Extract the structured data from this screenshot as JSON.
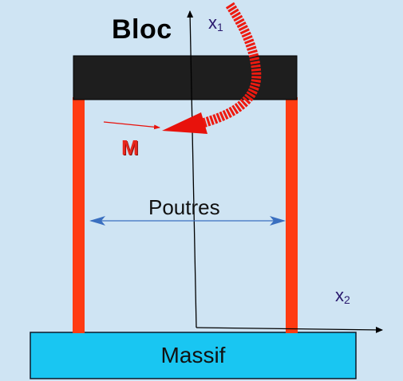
{
  "labels": {
    "bloc": "Bloc",
    "x1_base": "x",
    "x1_sub": "1",
    "x2_base": "x",
    "x2_sub": "2",
    "moment": "M",
    "poutres": "Poutres",
    "massif": "Massif"
  },
  "colors": {
    "background": "#cfe4f3",
    "bloc_fill": "#1e1e1e",
    "beam_fill": "#ff3b12",
    "massif_fill": "#19c6f2",
    "moment_arrow": "#e8120c",
    "dimension_arrow": "#3a6fc0",
    "axis": "#000000"
  }
}
